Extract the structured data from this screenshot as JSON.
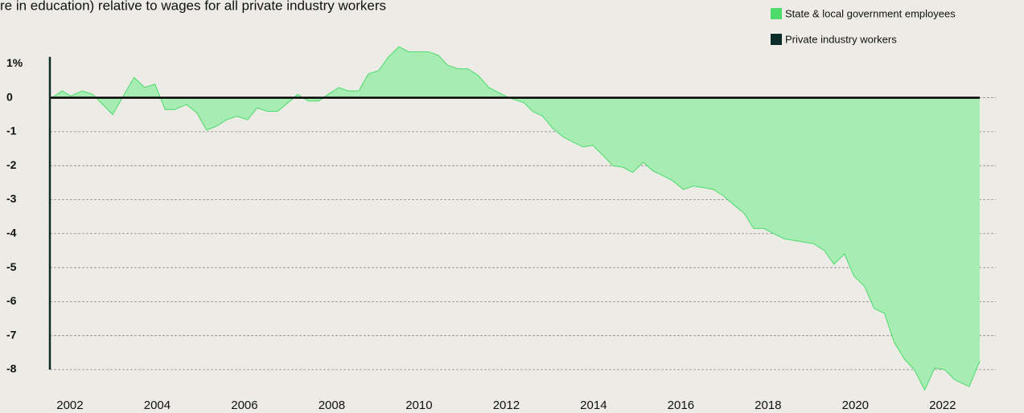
{
  "chart_data": {
    "type": "area",
    "title": "re in education) relative to wages for all private industry workers",
    "series": [
      {
        "name": "State & local government employees",
        "color": "#4cdb6b",
        "fill": "#a6ecb3",
        "x": [
          2001.59,
          2001.82,
          2002.02,
          2002.28,
          2002.52,
          2002.98,
          2003.2,
          2003.47,
          2003.71,
          2003.95,
          2004.18,
          2004.4,
          2004.67,
          2004.91,
          2005.13,
          2005.34,
          2005.59,
          2005.83,
          2006.07,
          2006.29,
          2006.52,
          2006.76,
          2007.0,
          2007.22,
          2007.46,
          2007.7,
          2007.92,
          2008.16,
          2008.38,
          2008.62,
          2008.84,
          2009.08,
          2009.3,
          2009.54,
          2009.76,
          2009.98,
          2010.22,
          2010.44,
          2010.66,
          2010.9,
          2011.12,
          2011.36,
          2011.6,
          2011.82,
          2012.06,
          2012.29,
          2012.41,
          2012.6,
          2012.84,
          2013.06,
          2013.3,
          2013.52,
          2013.76,
          2013.98,
          2014.22,
          2014.44,
          2014.68,
          2014.9,
          2015.14,
          2015.36,
          2015.6,
          2015.82,
          2016.06,
          2016.29,
          2016.53,
          2016.75,
          2016.99,
          2017.21,
          2017.45,
          2017.67,
          2017.91,
          2018.13,
          2018.37,
          2018.59,
          2018.83,
          2019.05,
          2019.29,
          2019.51,
          2019.75,
          2019.97,
          2020.21,
          2020.43,
          2020.67,
          2020.89,
          2021.13,
          2021.35,
          2021.59,
          2021.82,
          2022.05,
          2022.28,
          2022.61,
          2022.85
        ],
        "values": [
          0,
          0.2,
          0.05,
          0.2,
          0.1,
          -0.5,
          0,
          0.6,
          0.3,
          0.4,
          -0.35,
          -0.35,
          -0.2,
          -0.45,
          -0.95,
          -0.85,
          -0.65,
          -0.55,
          -0.65,
          -0.3,
          -0.4,
          -0.4,
          -0.15,
          0.1,
          -0.1,
          -0.1,
          0.1,
          0.3,
          0.2,
          0.2,
          0.7,
          0.8,
          1.2,
          1.5,
          1.35,
          1.35,
          1.35,
          1.25,
          0.95,
          0.85,
          0.85,
          0.65,
          0.3,
          0.15,
          0,
          -0.1,
          -0.15,
          -0.4,
          -0.55,
          -0.9,
          -1.15,
          -1.3,
          -1.45,
          -1.4,
          -1.7,
          -2.0,
          -2.05,
          -2.2,
          -1.9,
          -2.15,
          -2.3,
          -2.45,
          -2.7,
          -2.6,
          -2.65,
          -2.7,
          -2.9,
          -3.15,
          -3.4,
          -3.85,
          -3.85,
          -4.0,
          -4.15,
          -4.2,
          -4.25,
          -4.3,
          -4.5,
          -4.9,
          -4.6,
          -5.25,
          -5.55,
          -6.2,
          -6.35,
          -7.2,
          -7.7,
          -8.0,
          -8.6,
          -7.95,
          -8.0,
          -8.3,
          -8.5,
          -7.75
        ]
      }
    ],
    "reference_line": {
      "name": "Private industry workers",
      "color": "#0b2b26",
      "value": 0
    },
    "xlim": [
      2001.54,
      2023.22
    ],
    "xticks": [
      2002,
      2004,
      2006,
      2008,
      2010,
      2012,
      2014,
      2016,
      2018,
      2020,
      2022
    ],
    "ylim": [
      -8,
      1.2
    ],
    "yticks": [
      {
        "value": 1,
        "label": "1%"
      },
      0,
      -1,
      -2,
      -3,
      -4,
      -5,
      -6,
      -7,
      -8
    ],
    "grid": true
  }
}
